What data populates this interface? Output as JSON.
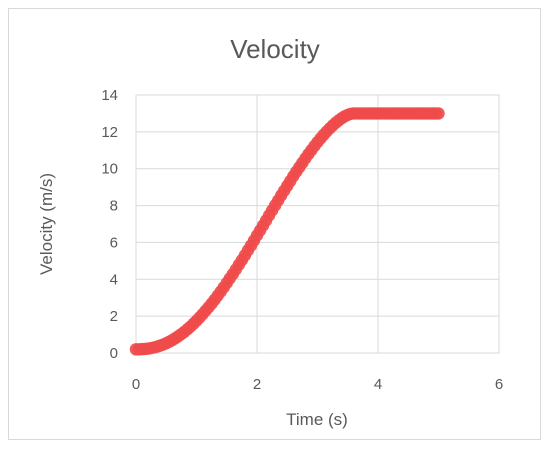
{
  "chart_data": {
    "type": "scatter",
    "title": "Velocity",
    "xlabel": "Time (s)",
    "ylabel": "Velocity (m/s)",
    "xlim": [
      0,
      6
    ],
    "ylim": [
      0,
      14
    ],
    "x_ticks": [
      "0",
      "2",
      "4",
      "6"
    ],
    "y_ticks": [
      "0",
      "2",
      "4",
      "6",
      "8",
      "10",
      "12",
      "14"
    ],
    "grid": true,
    "legend": "none",
    "marker_color": "#f04b4b",
    "series": [
      {
        "x": [
          0,
          0.05,
          0.1,
          0.15,
          0.2,
          0.25,
          0.3,
          0.35,
          0.4,
          0.45,
          0.5,
          0.55,
          0.6,
          0.65,
          0.7,
          0.75,
          0.8,
          0.85,
          0.9,
          0.95,
          1.0,
          1.05,
          1.1,
          1.15,
          1.2,
          1.25,
          1.3,
          1.35,
          1.4,
          1.45,
          1.5,
          1.55,
          1.6,
          1.65,
          1.7,
          1.75,
          1.8,
          1.85,
          1.9,
          1.95,
          2.0,
          2.05,
          2.1,
          2.15,
          2.2,
          2.25,
          2.3,
          2.35,
          2.4,
          2.45,
          2.5,
          2.55,
          2.6,
          2.65,
          2.7,
          2.75,
          2.8,
          2.85,
          2.9,
          2.95,
          3.0,
          3.05,
          3.1,
          3.15,
          3.2,
          3.25,
          3.3,
          3.35,
          3.4,
          3.45,
          3.5,
          3.55,
          3.6,
          3.65,
          3.7,
          3.75,
          3.8,
          3.85,
          3.9,
          3.95,
          4.0,
          4.05,
          4.1,
          4.15,
          4.2,
          4.25,
          4.3,
          4.35,
          4.4,
          4.45,
          4.5,
          4.55,
          4.6,
          4.65,
          4.7,
          4.75,
          4.8,
          4.85,
          4.9,
          4.95,
          5.0
        ],
        "y": [
          0.2,
          0.2,
          0.21,
          0.22,
          0.24,
          0.27,
          0.3,
          0.35,
          0.4,
          0.46,
          0.53,
          0.61,
          0.7,
          0.8,
          0.91,
          1.03,
          1.15,
          1.29,
          1.43,
          1.59,
          1.75,
          1.92,
          2.1,
          2.29,
          2.48,
          2.68,
          2.89,
          3.11,
          3.33,
          3.56,
          3.8,
          4.04,
          4.28,
          4.53,
          4.79,
          5.04,
          5.3,
          5.57,
          5.83,
          6.1,
          6.38,
          6.65,
          6.92,
          7.19,
          7.47,
          7.74,
          8.01,
          8.28,
          8.55,
          8.81,
          9.07,
          9.33,
          9.59,
          9.84,
          10.08,
          10.32,
          10.56,
          10.79,
          11.01,
          11.23,
          11.44,
          11.64,
          11.83,
          12.01,
          12.18,
          12.34,
          12.49,
          12.62,
          12.74,
          12.84,
          12.92,
          12.98,
          13.0,
          13.0,
          13.0,
          13.0,
          13.0,
          13.0,
          13.0,
          13.0,
          13.0,
          13.0,
          13.0,
          13.0,
          13.0,
          13.0,
          13.0,
          13.0,
          13.0,
          13.0,
          13.0,
          13.0,
          13.0,
          13.0,
          13.0,
          13.0,
          13.0,
          13.0,
          13.0,
          13.0,
          13.0
        ]
      }
    ]
  }
}
